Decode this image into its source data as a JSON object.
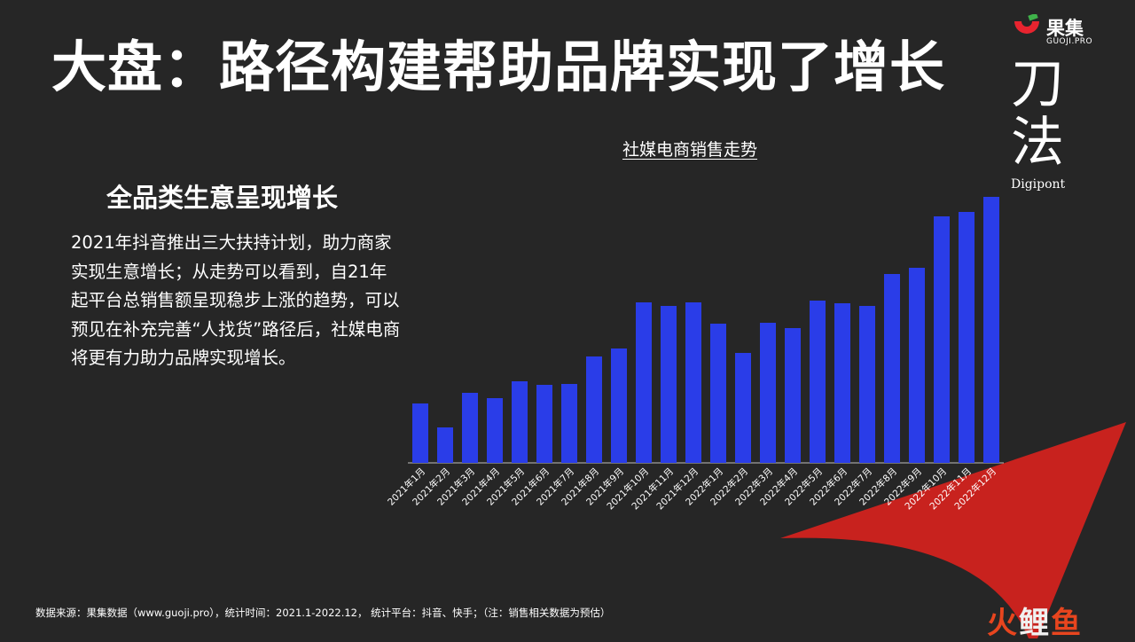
{
  "page": {
    "title": "大盘：路径构建帮助品牌实现了增长",
    "subtitle": "全品类生意呈现增长",
    "body": "2021年抖音推出三大扶持计划，助力商家实现生意增长；从走势可以看到，自21年起平台总销售额呈现稳步上涨的趋势，可以预见在补充完善“人找货”路径后，社媒电商将更有力助力品牌实现增长。",
    "footer": "数据来源：果集数据（www.guoji.pro），统计时间：2021.1-2022.12， 统计平台：抖音、快手；（注：销售相关数据为预估）"
  },
  "logo": {
    "name": "果集",
    "domain": "GUOJI.PRO",
    "icon": "guoji-logo-icon",
    "colors": {
      "red": "#e8242f",
      "green": "#3fb24a"
    }
  },
  "brand": {
    "cn": "刀法",
    "en": "Digipont"
  },
  "watermark": {
    "part1": "火",
    "part2": "鲤",
    "part3": "鱼"
  },
  "colors": {
    "background": "#262626",
    "bar": "#2a3de8",
    "arrow": "#c8221e"
  },
  "chart_data": {
    "type": "bar",
    "title": "社媒电商销售走势",
    "categories": [
      "2021年1月",
      "2021年2月",
      "2021年3月",
      "2021年4月",
      "2021年5月",
      "2021年6月",
      "2021年7月",
      "2021年8月",
      "2021年9月",
      "2021年10月",
      "2021年11月",
      "2021年12月",
      "2022年1月",
      "2022年2月",
      "2022年3月",
      "2022年4月",
      "2022年5月",
      "2022年6月",
      "2022年7月",
      "2022年8月",
      "2022年9月",
      "2022年10月",
      "2022年11月",
      "2022年12月"
    ],
    "values": [
      67,
      40,
      79,
      73,
      92,
      88,
      89,
      120,
      129,
      181,
      177,
      181,
      157,
      124,
      158,
      152,
      183,
      180,
      177,
      213,
      220,
      278,
      283,
      300
    ],
    "ylim": [
      0,
      300
    ],
    "grid": false,
    "legend": "none",
    "xlabel": "",
    "ylabel": ""
  }
}
